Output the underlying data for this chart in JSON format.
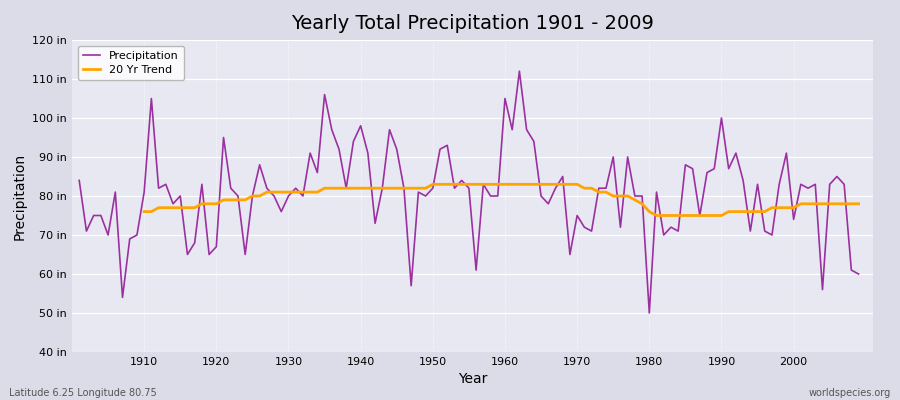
{
  "title": "Yearly Total Precipitation 1901 - 2009",
  "xlabel": "Year",
  "ylabel": "Precipitation",
  "subtitle": "Latitude 6.25 Longitude 80.75",
  "watermark": "worldspecies.org",
  "ylim": [
    40,
    120
  ],
  "yticks": [
    40,
    50,
    60,
    70,
    80,
    90,
    100,
    110,
    120
  ],
  "ytick_labels": [
    "40 in",
    "50 in",
    "60 in",
    "70 in",
    "80 in",
    "90 in",
    "100 in",
    "110 in",
    "120 in"
  ],
  "precip_color": "#9B30A0",
  "trend_color": "#FFA500",
  "bg_color": "#DCDCE8",
  "plot_bg_color": "#E8E8F2",
  "years": [
    1901,
    1902,
    1903,
    1904,
    1905,
    1906,
    1907,
    1908,
    1909,
    1910,
    1911,
    1912,
    1913,
    1914,
    1915,
    1916,
    1917,
    1918,
    1919,
    1920,
    1921,
    1922,
    1923,
    1924,
    1925,
    1926,
    1927,
    1928,
    1929,
    1930,
    1931,
    1932,
    1933,
    1934,
    1935,
    1936,
    1937,
    1938,
    1939,
    1940,
    1941,
    1942,
    1943,
    1944,
    1945,
    1946,
    1947,
    1948,
    1949,
    1950,
    1951,
    1952,
    1953,
    1954,
    1955,
    1956,
    1957,
    1958,
    1959,
    1960,
    1961,
    1962,
    1963,
    1964,
    1965,
    1966,
    1967,
    1968,
    1969,
    1970,
    1971,
    1972,
    1973,
    1974,
    1975,
    1976,
    1977,
    1978,
    1979,
    1980,
    1981,
    1982,
    1983,
    1984,
    1985,
    1986,
    1987,
    1988,
    1989,
    1990,
    1991,
    1992,
    1993,
    1994,
    1995,
    1996,
    1997,
    1998,
    1999,
    2000,
    2001,
    2002,
    2003,
    2004,
    2005,
    2006,
    2007,
    2008,
    2009
  ],
  "precip": [
    84,
    71,
    75,
    75,
    70,
    81,
    54,
    69,
    70,
    81,
    105,
    82,
    83,
    78,
    80,
    65,
    68,
    83,
    65,
    67,
    95,
    82,
    80,
    65,
    80,
    88,
    82,
    80,
    76,
    80,
    82,
    80,
    91,
    86,
    106,
    97,
    92,
    82,
    94,
    98,
    91,
    73,
    82,
    97,
    92,
    82,
    57,
    81,
    80,
    82,
    92,
    93,
    82,
    84,
    82,
    61,
    83,
    80,
    80,
    105,
    97,
    112,
    97,
    94,
    80,
    78,
    82,
    85,
    65,
    75,
    72,
    71,
    82,
    82,
    90,
    72,
    90,
    80,
    80,
    50,
    81,
    70,
    72,
    71,
    88,
    87,
    75,
    86,
    87,
    100,
    87,
    91,
    84,
    71,
    83,
    71,
    70,
    83,
    91,
    74,
    83,
    82,
    83,
    56,
    83,
    85,
    83,
    61,
    60
  ],
  "trend": [
    null,
    null,
    null,
    null,
    null,
    null,
    null,
    null,
    null,
    76,
    76,
    77,
    77,
    77,
    77,
    77,
    77,
    78,
    78,
    78,
    79,
    79,
    79,
    79,
    80,
    80,
    81,
    81,
    81,
    81,
    81,
    81,
    81,
    81,
    82,
    82,
    82,
    82,
    82,
    82,
    82,
    82,
    82,
    82,
    82,
    82,
    82,
    82,
    82,
    83,
    83,
    83,
    83,
    83,
    83,
    83,
    83,
    83,
    83,
    83,
    83,
    83,
    83,
    83,
    83,
    83,
    83,
    83,
    83,
    83,
    82,
    82,
    81,
    81,
    80,
    80,
    80,
    79,
    78,
    76,
    75,
    75,
    75,
    75,
    75,
    75,
    75,
    75,
    75,
    75,
    76,
    76,
    76,
    76,
    76,
    76,
    77,
    77,
    77,
    77,
    78,
    78,
    78,
    78,
    78,
    78,
    78,
    78,
    78
  ]
}
